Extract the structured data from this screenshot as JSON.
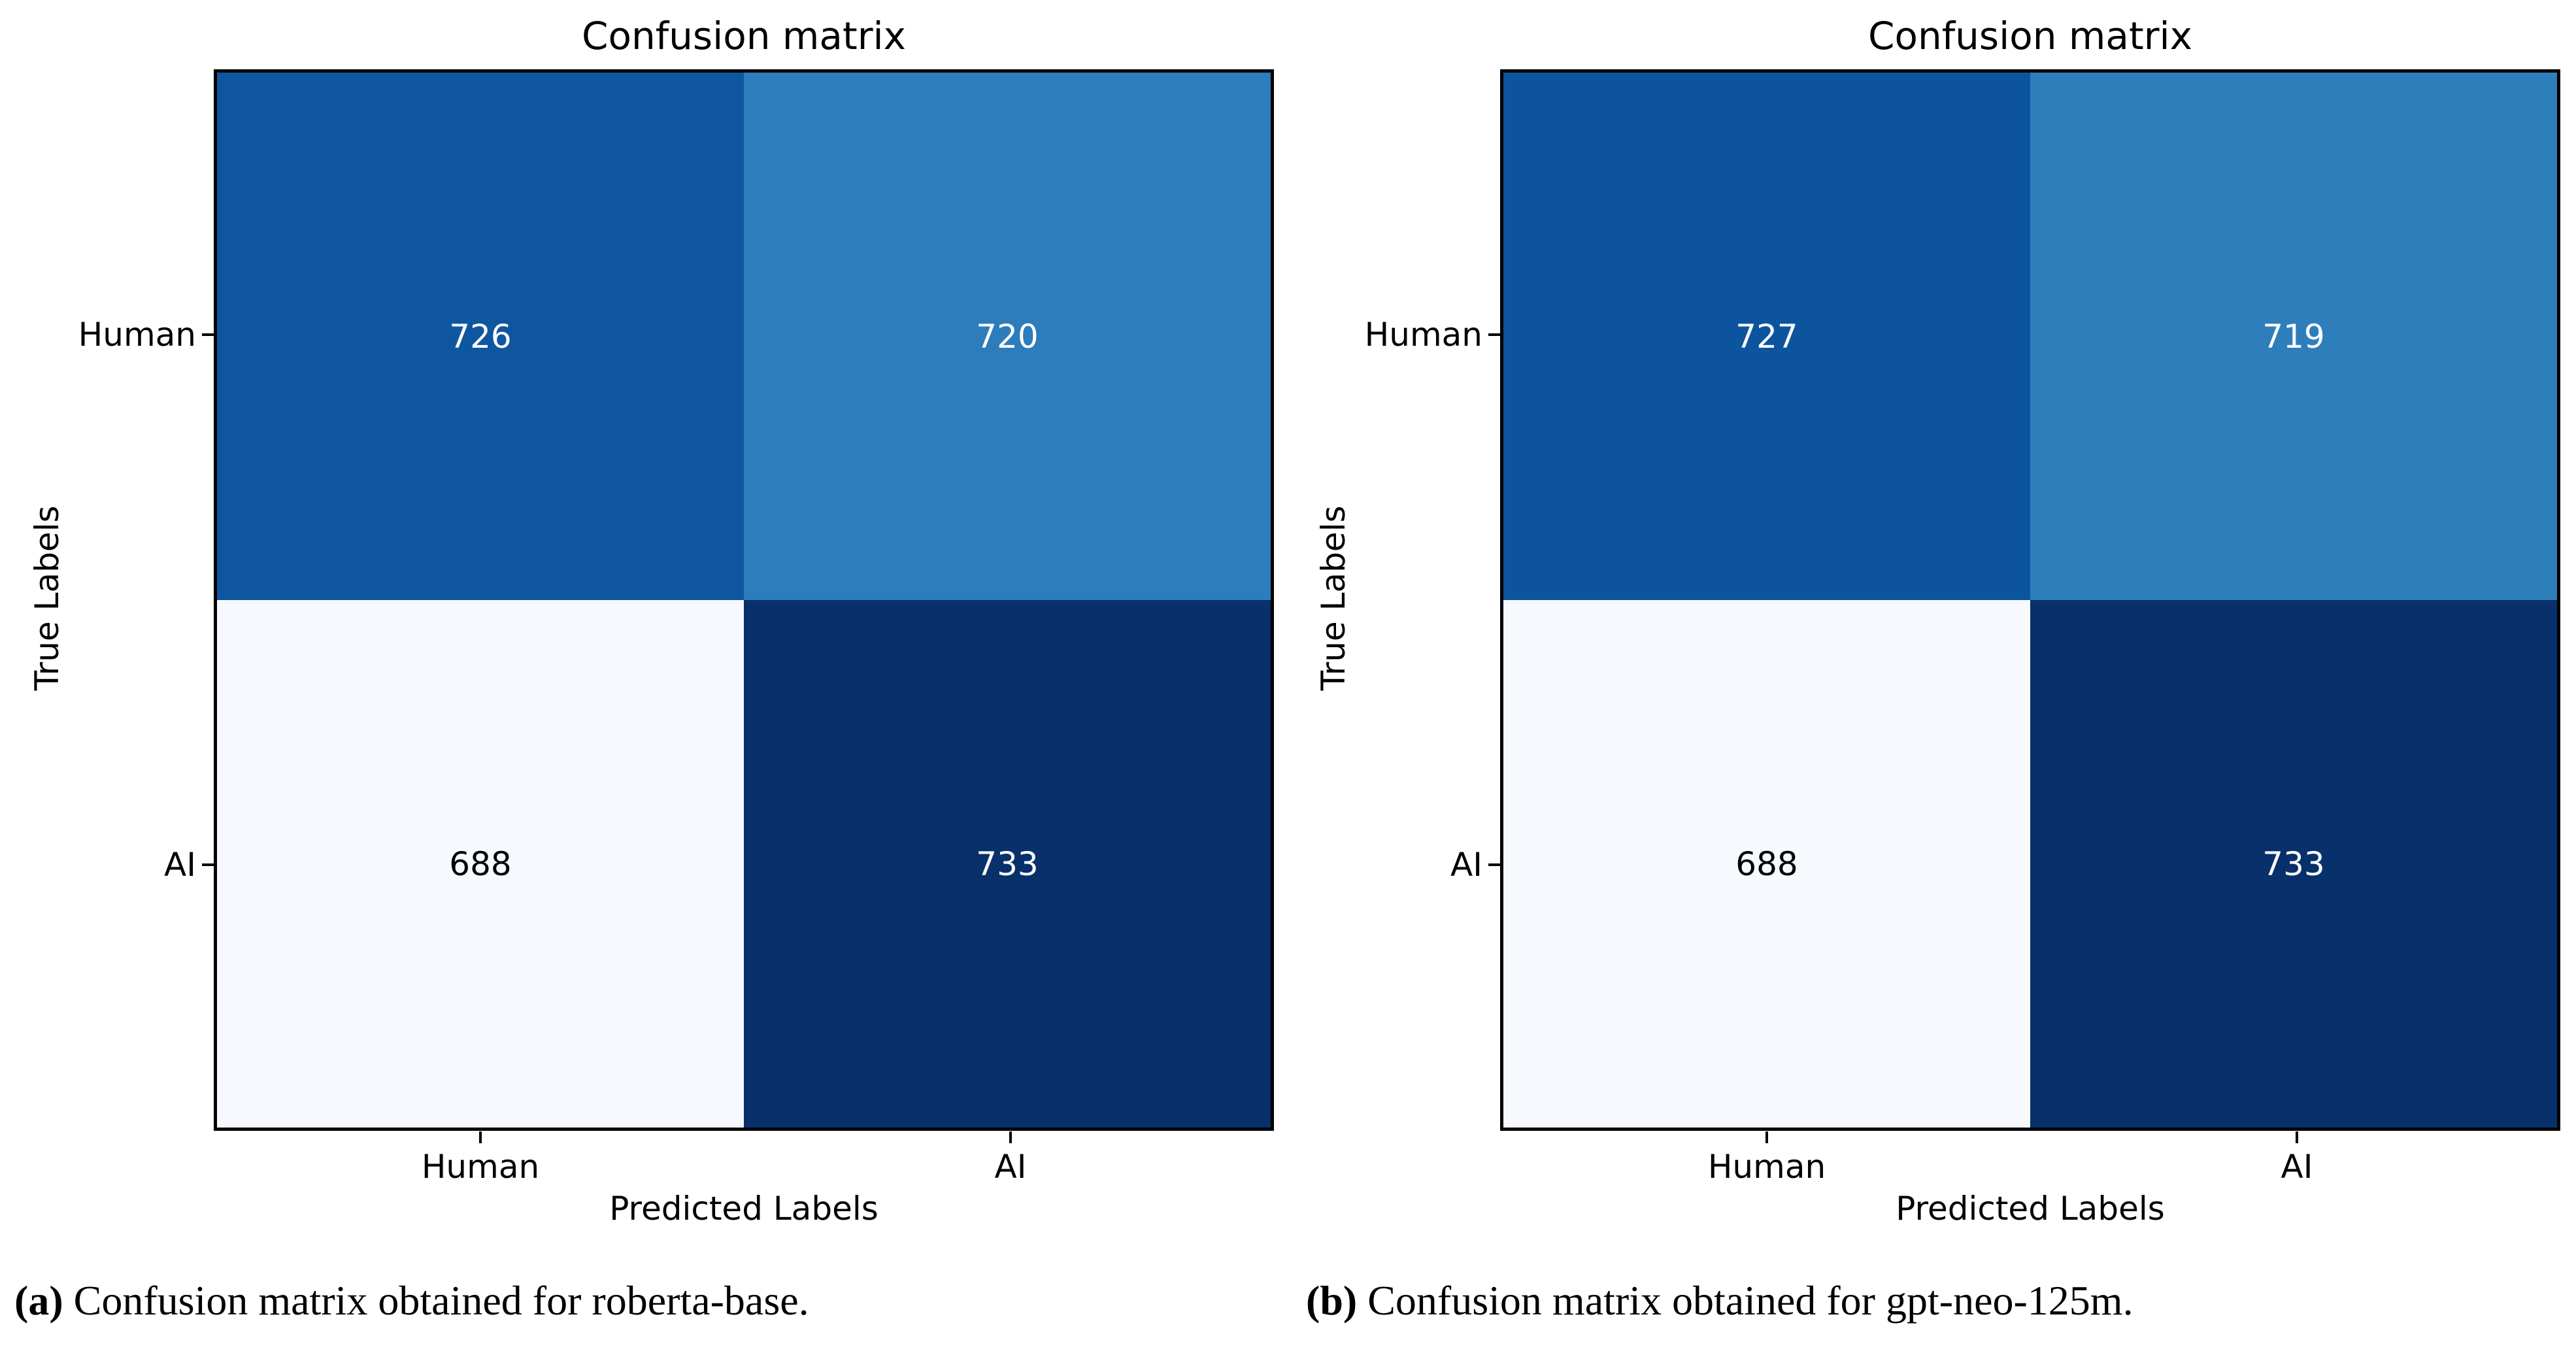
{
  "figure": {
    "background": "#ffffff",
    "border_color": "#000000",
    "panels": [
      {
        "id": "a",
        "title": "Confusion matrix",
        "xlabel": "Predicted Labels",
        "ylabel": "True Labels",
        "x_ticks": [
          "Human",
          "AI"
        ],
        "y_ticks": [
          "Human",
          "AI"
        ],
        "cells": [
          {
            "value": "726",
            "bg": "#0e56a0",
            "fg": "#ffffff"
          },
          {
            "value": "720",
            "bg": "#2d7cbb",
            "fg": "#ffffff"
          },
          {
            "value": "688",
            "bg": "#f6fafe",
            "fg": "#000000"
          },
          {
            "value": "733",
            "bg": "#08306b",
            "fg": "#ffffff"
          }
        ],
        "caption_label": "(a)",
        "caption_text": " Confusion matrix obtained for roberta-base."
      },
      {
        "id": "b",
        "title": "Confusion matrix",
        "xlabel": "Predicted Labels",
        "ylabel": "True Labels",
        "x_ticks": [
          "Human",
          "AI"
        ],
        "y_ticks": [
          "Human",
          "AI"
        ],
        "cells": [
          {
            "value": "727",
            "bg": "#0c549e",
            "fg": "#ffffff"
          },
          {
            "value": "719",
            "bg": "#2f7ebc",
            "fg": "#ffffff"
          },
          {
            "value": "688",
            "bg": "#f6fafe",
            "fg": "#000000"
          },
          {
            "value": "733",
            "bg": "#08306b",
            "fg": "#ffffff"
          }
        ],
        "caption_label": "(b)",
        "caption_text": " Confusion matrix obtained for gpt-neo-125m."
      }
    ]
  },
  "chart_data": [
    {
      "type": "heatmap",
      "title": "Confusion matrix",
      "xlabel": "Predicted Labels",
      "ylabel": "True Labels",
      "x_categories": [
        "Human",
        "AI"
      ],
      "y_categories": [
        "Human",
        "AI"
      ],
      "values": [
        [
          726,
          720
        ],
        [
          688,
          733
        ]
      ],
      "colormap": "Blues",
      "legend": "none",
      "caption": "(a) Confusion matrix obtained for roberta-base."
    },
    {
      "type": "heatmap",
      "title": "Confusion matrix",
      "xlabel": "Predicted Labels",
      "ylabel": "True Labels",
      "x_categories": [
        "Human",
        "AI"
      ],
      "y_categories": [
        "Human",
        "AI"
      ],
      "values": [
        [
          727,
          719
        ],
        [
          688,
          733
        ]
      ],
      "colormap": "Blues",
      "legend": "none",
      "caption": "(b) Confusion matrix obtained for gpt-neo-125m."
    }
  ]
}
